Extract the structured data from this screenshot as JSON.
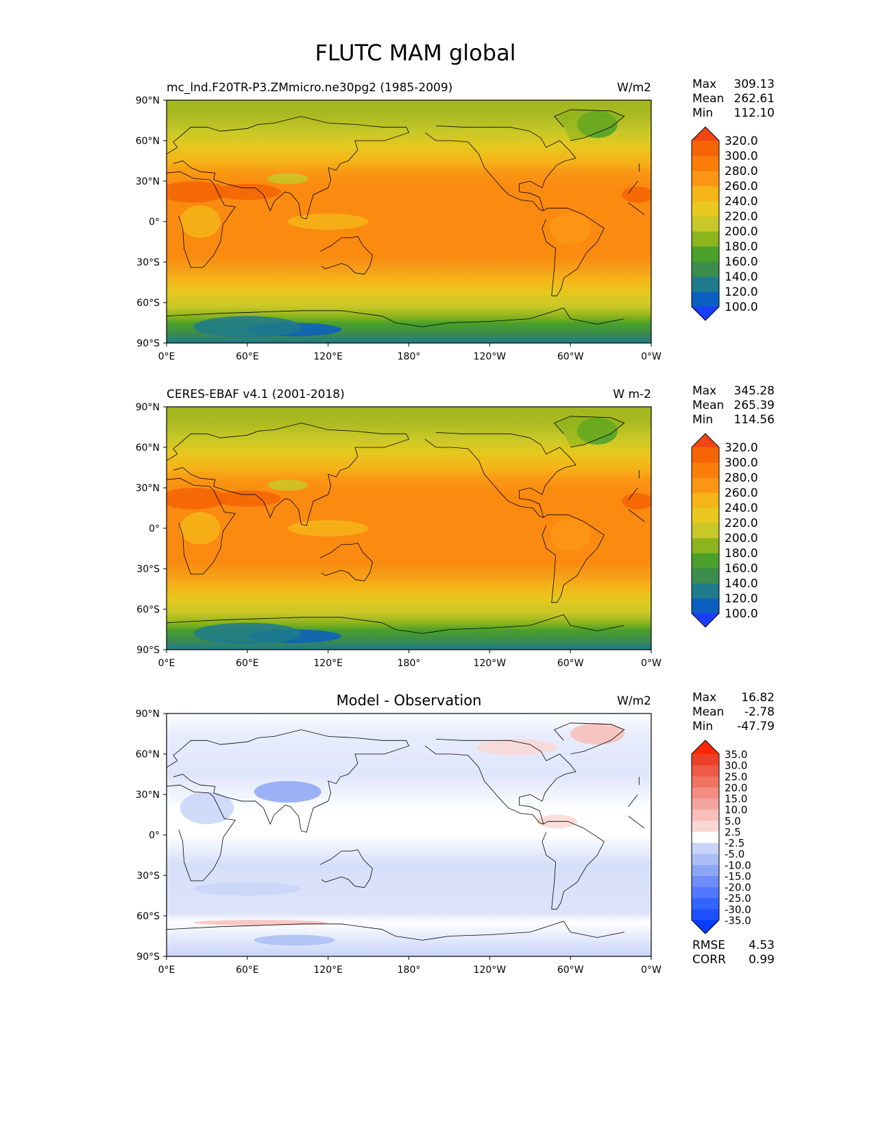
{
  "figure": {
    "title": "FLUTC MAM global"
  },
  "panels": [
    {
      "id": "model",
      "left_title": "mc_lnd.F20TR-P3.ZMmicro.ne30pg2 (1985-2009)",
      "center_title": "",
      "units": "W/m2",
      "stats": [
        {
          "label": "Max",
          "value": "309.13"
        },
        {
          "label": "Mean",
          "value": "262.61"
        },
        {
          "label": "Min",
          "value": "112.10"
        }
      ],
      "colorbar": {
        "levels": [
          "100.0",
          "120.0",
          "140.0",
          "160.0",
          "180.0",
          "200.0",
          "220.0",
          "240.0",
          "260.0",
          "280.0",
          "300.0",
          "320.0"
        ],
        "colors": [
          "#1a3cff",
          "#0a5fc0",
          "#1f7a8c",
          "#3c8c4c",
          "#4aa02a",
          "#8cb41c",
          "#c8c828",
          "#e6c81e",
          "#f5b418",
          "#fa9614",
          "#fa7d0a",
          "#f56405",
          "#f04614"
        ]
      }
    },
    {
      "id": "obs",
      "left_title": "CERES-EBAF v4.1 (2001-2018)",
      "center_title": "",
      "units": "W m-2",
      "stats": [
        {
          "label": "Max",
          "value": "345.28"
        },
        {
          "label": "Mean",
          "value": "265.39"
        },
        {
          "label": "Min",
          "value": "114.56"
        }
      ],
      "colorbar": {
        "levels": [
          "100.0",
          "120.0",
          "140.0",
          "160.0",
          "180.0",
          "200.0",
          "220.0",
          "240.0",
          "260.0",
          "280.0",
          "300.0",
          "320.0"
        ],
        "colors": [
          "#1a3cff",
          "#0a5fc0",
          "#1f7a8c",
          "#3c8c4c",
          "#4aa02a",
          "#8cb41c",
          "#c8c828",
          "#e6c81e",
          "#f5b418",
          "#fa9614",
          "#fa7d0a",
          "#f56405",
          "#f04614"
        ]
      }
    },
    {
      "id": "diff",
      "left_title": "",
      "center_title": "Model - Observation",
      "units": "W/m2",
      "stats": [
        {
          "label": "Max",
          "value": "16.82"
        },
        {
          "label": "Mean",
          "value": "-2.78"
        },
        {
          "label": "Min",
          "value": "-47.79"
        }
      ],
      "metrics": [
        {
          "label": "RMSE",
          "value": "4.53"
        },
        {
          "label": "CORR",
          "value": "0.99"
        }
      ],
      "colorbar": {
        "levels": [
          "-35.0",
          "-30.0",
          "-25.0",
          "-20.0",
          "-15.0",
          "-10.0",
          "-5.0",
          "-2.5",
          "2.5",
          "5.0",
          "10.0",
          "15.0",
          "20.0",
          "25.0",
          "30.0",
          "35.0"
        ],
        "colors": [
          "#0a3cff",
          "#1e50ff",
          "#3264ff",
          "#5078ff",
          "#6e8cfa",
          "#8ca5f5",
          "#aabef5",
          "#c8d4f8",
          "#ffffff",
          "#fad7d4",
          "#f8beb9",
          "#f5a59f",
          "#f58c82",
          "#f0735f",
          "#ee5a46",
          "#ec4128",
          "#ff2800"
        ]
      }
    }
  ],
  "axes": {
    "lat_ticks": [
      "90°N",
      "60°N",
      "30°N",
      "0°",
      "30°S",
      "60°S",
      "90°S"
    ],
    "lon_ticks": [
      "0°E",
      "60°E",
      "120°E",
      "180°",
      "120°W",
      "60°W",
      "0°W"
    ]
  }
}
